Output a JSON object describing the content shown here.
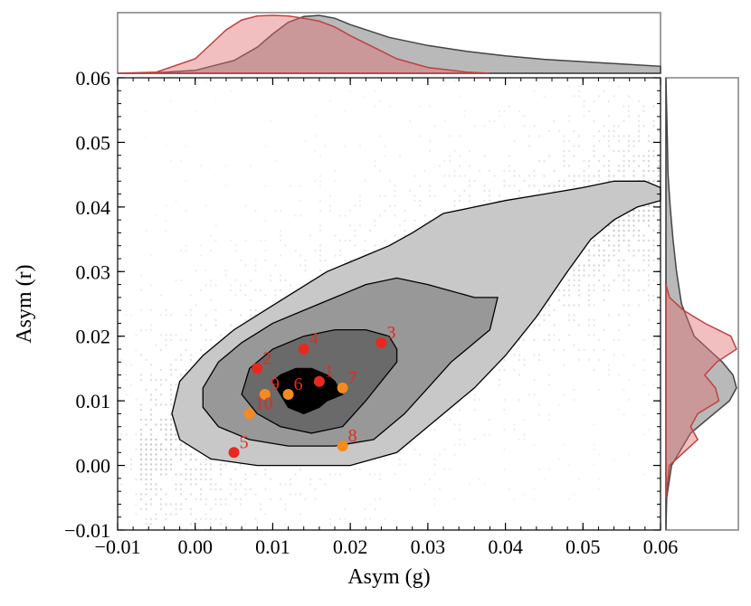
{
  "chart_data": {
    "type": "scatter",
    "xlabel": "Asym (g)",
    "ylabel": "Asym (r)",
    "xlim": [
      -0.01,
      0.06
    ],
    "ylim": [
      -0.01,
      0.06
    ],
    "xticks": [
      -0.01,
      0.0,
      0.01,
      0.02,
      0.03,
      0.04,
      0.05,
      0.06
    ],
    "yticks": [
      -0.01,
      0.0,
      0.01,
      0.02,
      0.03,
      0.04,
      0.05,
      0.06
    ],
    "xtick_labels": [
      "−0.01",
      "0.00",
      "0.01",
      "0.02",
      "0.03",
      "0.04",
      "0.05",
      "0.06"
    ],
    "ytick_labels": [
      "−0.01",
      "0.00",
      "0.01",
      "0.02",
      "0.03",
      "0.04",
      "0.05",
      "0.06"
    ],
    "colors": {
      "red_points": "#e8281e",
      "orange_points": "#f58a1f",
      "contour_outer": "#c8c8c8",
      "contour_mid": "#989898",
      "contour_inner": "#6a6a6a",
      "contour_core": "#000000",
      "marginal_gray": "#808080",
      "marginal_red": "#e07070"
    },
    "series": [
      {
        "name": "red",
        "color": "#e8281e",
        "points": [
          {
            "label": "1",
            "x": 0.016,
            "y": 0.013
          },
          {
            "label": "2",
            "x": 0.008,
            "y": 0.015
          },
          {
            "label": "3",
            "x": 0.024,
            "y": 0.019
          },
          {
            "label": "4",
            "x": 0.014,
            "y": 0.018
          },
          {
            "label": "5",
            "x": 0.005,
            "y": 0.002
          }
        ]
      },
      {
        "name": "orange",
        "color": "#f58a1f",
        "points": [
          {
            "label": "6",
            "x": 0.012,
            "y": 0.011
          },
          {
            "label": "7",
            "x": 0.019,
            "y": 0.012
          },
          {
            "label": "8",
            "x": 0.019,
            "y": 0.003
          },
          {
            "label": "9",
            "x": 0.009,
            "y": 0.011
          },
          {
            "label": "10",
            "x": 0.007,
            "y": 0.008
          }
        ]
      }
    ],
    "contours": [
      {
        "level": "outer",
        "points": [
          [
            -0.003,
            0.008
          ],
          [
            -0.002,
            0.004
          ],
          [
            0.002,
            0.001
          ],
          [
            0.008,
            0.0
          ],
          [
            0.014,
            0.0
          ],
          [
            0.02,
            0.0
          ],
          [
            0.026,
            0.002
          ],
          [
            0.031,
            0.007
          ],
          [
            0.036,
            0.012
          ],
          [
            0.04,
            0.017
          ],
          [
            0.044,
            0.023
          ],
          [
            0.048,
            0.03
          ],
          [
            0.051,
            0.035
          ],
          [
            0.054,
            0.038
          ],
          [
            0.057,
            0.04
          ],
          [
            0.06,
            0.041
          ],
          [
            0.06,
            0.043
          ],
          [
            0.058,
            0.044
          ],
          [
            0.054,
            0.044
          ],
          [
            0.05,
            0.043
          ],
          [
            0.045,
            0.042
          ],
          [
            0.04,
            0.041
          ],
          [
            0.036,
            0.04
          ],
          [
            0.032,
            0.039
          ],
          [
            0.028,
            0.036
          ],
          [
            0.025,
            0.034
          ],
          [
            0.021,
            0.032
          ],
          [
            0.017,
            0.03
          ],
          [
            0.013,
            0.027
          ],
          [
            0.009,
            0.024
          ],
          [
            0.005,
            0.021
          ],
          [
            0.001,
            0.017
          ],
          [
            -0.002,
            0.013
          ]
        ]
      },
      {
        "level": "mid",
        "points": [
          [
            0.001,
            0.009
          ],
          [
            0.003,
            0.006
          ],
          [
            0.007,
            0.004
          ],
          [
            0.012,
            0.003
          ],
          [
            0.018,
            0.003
          ],
          [
            0.023,
            0.004
          ],
          [
            0.027,
            0.008
          ],
          [
            0.03,
            0.012
          ],
          [
            0.033,
            0.016
          ],
          [
            0.036,
            0.019
          ],
          [
            0.038,
            0.021
          ],
          [
            0.039,
            0.026
          ],
          [
            0.036,
            0.026
          ],
          [
            0.033,
            0.027
          ],
          [
            0.03,
            0.028
          ],
          [
            0.026,
            0.029
          ],
          [
            0.022,
            0.028
          ],
          [
            0.018,
            0.026
          ],
          [
            0.014,
            0.024
          ],
          [
            0.01,
            0.022
          ],
          [
            0.006,
            0.019
          ],
          [
            0.003,
            0.016
          ],
          [
            0.001,
            0.012
          ]
        ]
      },
      {
        "level": "inner",
        "points": [
          [
            0.006,
            0.011
          ],
          [
            0.008,
            0.008
          ],
          [
            0.011,
            0.006
          ],
          [
            0.015,
            0.005
          ],
          [
            0.019,
            0.006
          ],
          [
            0.022,
            0.01
          ],
          [
            0.024,
            0.013
          ],
          [
            0.026,
            0.016
          ],
          [
            0.026,
            0.018
          ],
          [
            0.025,
            0.02
          ],
          [
            0.022,
            0.021
          ],
          [
            0.018,
            0.021
          ],
          [
            0.014,
            0.02
          ],
          [
            0.01,
            0.018
          ],
          [
            0.007,
            0.015
          ]
        ]
      },
      {
        "level": "core",
        "points": [
          [
            0.011,
            0.011
          ],
          [
            0.012,
            0.009
          ],
          [
            0.014,
            0.008
          ],
          [
            0.016,
            0.009
          ],
          [
            0.017,
            0.01
          ],
          [
            0.019,
            0.011
          ],
          [
            0.018,
            0.013
          ],
          [
            0.017,
            0.014
          ],
          [
            0.015,
            0.015
          ],
          [
            0.013,
            0.015
          ],
          [
            0.011,
            0.014
          ],
          [
            0.01,
            0.013
          ]
        ]
      }
    ],
    "marginal_x": {
      "gray": [
        [
          -0.01,
          0.0
        ],
        [
          -0.005,
          0.01
        ],
        [
          0.0,
          0.05
        ],
        [
          0.005,
          0.22
        ],
        [
          0.008,
          0.45
        ],
        [
          0.01,
          0.68
        ],
        [
          0.012,
          0.88
        ],
        [
          0.014,
          0.98
        ],
        [
          0.016,
          1.0
        ],
        [
          0.018,
          0.95
        ],
        [
          0.02,
          0.84
        ],
        [
          0.025,
          0.62
        ],
        [
          0.03,
          0.48
        ],
        [
          0.035,
          0.38
        ],
        [
          0.04,
          0.3
        ],
        [
          0.045,
          0.24
        ],
        [
          0.05,
          0.2
        ],
        [
          0.055,
          0.16
        ],
        [
          0.06,
          0.12
        ]
      ],
      "red": [
        [
          -0.01,
          0.0
        ],
        [
          -0.005,
          0.02
        ],
        [
          0.0,
          0.25
        ],
        [
          0.002,
          0.5
        ],
        [
          0.004,
          0.75
        ],
        [
          0.006,
          0.92
        ],
        [
          0.008,
          0.99
        ],
        [
          0.01,
          1.0
        ],
        [
          0.012,
          0.99
        ],
        [
          0.014,
          0.95
        ],
        [
          0.016,
          0.9
        ],
        [
          0.018,
          0.8
        ],
        [
          0.02,
          0.65
        ],
        [
          0.023,
          0.45
        ],
        [
          0.026,
          0.25
        ],
        [
          0.03,
          0.1
        ],
        [
          0.035,
          0.02
        ],
        [
          0.038,
          0.0
        ]
      ]
    },
    "marginal_y": {
      "gray": [
        [
          -0.01,
          0.0
        ],
        [
          -0.005,
          0.01
        ],
        [
          0.0,
          0.08
        ],
        [
          0.005,
          0.35
        ],
        [
          0.008,
          0.68
        ],
        [
          0.01,
          0.9
        ],
        [
          0.012,
          1.0
        ],
        [
          0.014,
          0.95
        ],
        [
          0.016,
          0.8
        ],
        [
          0.018,
          0.6
        ],
        [
          0.02,
          0.4
        ],
        [
          0.025,
          0.22
        ],
        [
          0.03,
          0.15
        ],
        [
          0.035,
          0.1
        ],
        [
          0.04,
          0.06
        ],
        [
          0.045,
          0.03
        ],
        [
          0.05,
          0.02
        ],
        [
          0.055,
          0.01
        ],
        [
          0.06,
          0.0
        ]
      ],
      "red": [
        [
          -0.005,
          0.0
        ],
        [
          0.0,
          0.05
        ],
        [
          0.002,
          0.25
        ],
        [
          0.004,
          0.45
        ],
        [
          0.006,
          0.35
        ],
        [
          0.008,
          0.45
        ],
        [
          0.01,
          0.75
        ],
        [
          0.012,
          0.7
        ],
        [
          0.014,
          0.55
        ],
        [
          0.016,
          0.72
        ],
        [
          0.018,
          1.0
        ],
        [
          0.02,
          0.92
        ],
        [
          0.022,
          0.55
        ],
        [
          0.024,
          0.25
        ],
        [
          0.026,
          0.05
        ],
        [
          0.028,
          0.0
        ]
      ]
    }
  }
}
